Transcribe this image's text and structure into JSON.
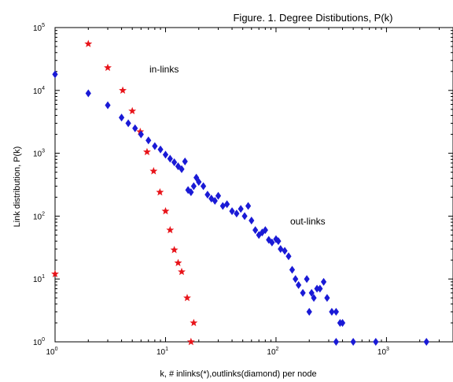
{
  "chart_data": {
    "type": "scatter",
    "title": "Figure. 1.   Degree Distibutions, P(k)",
    "xlabel": "k, # inlinks(*),outlinks(diamond) per node",
    "ylabel": "Link distribution, P(k)",
    "xscale": "log",
    "yscale": "log",
    "xlim": [
      1,
      4000
    ],
    "ylim": [
      1,
      100000
    ],
    "x_ticks": [
      {
        "base": "10",
        "exp": "0",
        "value": 1
      },
      {
        "base": "10",
        "exp": "1",
        "value": 10
      },
      {
        "base": "10",
        "exp": "2",
        "value": 100
      },
      {
        "base": "10",
        "exp": "3",
        "value": 1000
      }
    ],
    "y_ticks": [
      {
        "base": "10",
        "exp": "0",
        "value": 1
      },
      {
        "base": "10",
        "exp": "1",
        "value": 10
      },
      {
        "base": "10",
        "exp": "2",
        "value": 100
      },
      {
        "base": "10",
        "exp": "3",
        "value": 1000
      },
      {
        "base": "10",
        "exp": "4",
        "value": 10000
      },
      {
        "base": "10",
        "exp": "5",
        "value": 100000
      }
    ],
    "grid": false,
    "annotations": [
      "in-links",
      "out-links"
    ],
    "series": [
      {
        "marker": "star",
        "color": "#e8141a",
        "points": [
          [
            1,
            12
          ],
          [
            2,
            55000
          ],
          [
            3,
            23000
          ],
          [
            4.1,
            10000
          ],
          [
            5,
            4700
          ],
          [
            5.9,
            2200
          ],
          [
            6.8,
            1050
          ],
          [
            7.8,
            520
          ],
          [
            8.9,
            240
          ],
          [
            10,
            120
          ],
          [
            11,
            60
          ],
          [
            12,
            29
          ],
          [
            13,
            18
          ],
          [
            14,
            13
          ],
          [
            15.7,
            5
          ],
          [
            18,
            2
          ],
          [
            17,
            1
          ]
        ]
      },
      {
        "marker": "diamond",
        "color": "#1a1ad6",
        "points": [
          [
            1,
            18000
          ],
          [
            2,
            9000
          ],
          [
            3,
            5800
          ],
          [
            4,
            3700
          ],
          [
            4.6,
            3000
          ],
          [
            5.3,
            2500
          ],
          [
            6,
            2000
          ],
          [
            7,
            1600
          ],
          [
            8,
            1300
          ],
          [
            9,
            1150
          ],
          [
            10,
            950
          ],
          [
            11,
            820
          ],
          [
            12,
            720
          ],
          [
            13,
            620
          ],
          [
            14,
            560
          ],
          [
            15,
            740
          ],
          [
            16,
            260
          ],
          [
            17,
            240
          ],
          [
            18,
            300
          ],
          [
            19,
            410
          ],
          [
            20,
            350
          ],
          [
            22,
            300
          ],
          [
            24,
            220
          ],
          [
            26,
            190
          ],
          [
            28,
            175
          ],
          [
            30,
            210
          ],
          [
            33,
            145
          ],
          [
            36,
            155
          ],
          [
            40,
            120
          ],
          [
            44,
            110
          ],
          [
            48,
            130
          ],
          [
            52,
            100
          ],
          [
            56,
            145
          ],
          [
            60,
            85
          ],
          [
            65,
            60
          ],
          [
            70,
            50
          ],
          [
            75,
            55
          ],
          [
            80,
            60
          ],
          [
            86,
            42
          ],
          [
            92,
            38
          ],
          [
            100,
            43
          ],
          [
            105,
            40
          ],
          [
            110,
            30
          ],
          [
            120,
            28
          ],
          [
            130,
            23
          ],
          [
            140,
            14
          ],
          [
            150,
            10
          ],
          [
            160,
            8
          ],
          [
            175,
            6
          ],
          [
            190,
            10
          ],
          [
            200,
            3
          ],
          [
            210,
            6
          ],
          [
            220,
            5
          ],
          [
            235,
            7
          ],
          [
            250,
            7
          ],
          [
            270,
            9
          ],
          [
            290,
            5
          ],
          [
            320,
            3
          ],
          [
            350,
            3
          ],
          [
            380,
            2
          ],
          [
            400,
            2
          ],
          [
            350,
            1
          ],
          [
            500,
            1
          ],
          [
            800,
            1
          ],
          [
            2300,
            1
          ]
        ]
      }
    ]
  }
}
